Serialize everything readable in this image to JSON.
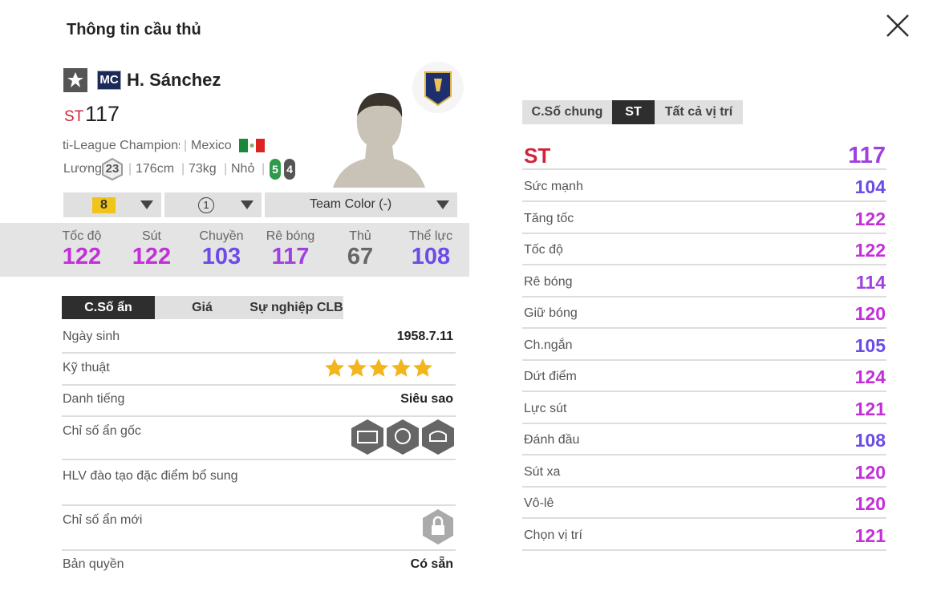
{
  "header": {
    "title": "Thông tin cầu thủ"
  },
  "player": {
    "name": "H. Sánchez",
    "card": "MC",
    "position": "ST",
    "overall": 117,
    "club": "ti-League Champions",
    "country": "Mexico",
    "salary_label": "Lương",
    "salary": 23,
    "height": "176cm",
    "weight": "73kg",
    "body": "Nhỏ",
    "weak_foot": [
      5,
      4
    ]
  },
  "selectors": [
    8,
    1,
    "Team Color (-)"
  ],
  "summary": [
    {
      "label": "Tốc độ",
      "value": 122,
      "color": "#c230d8"
    },
    {
      "label": "Sút",
      "value": 122,
      "color": "#c230d8"
    },
    {
      "label": "Chuyền",
      "value": 103,
      "color": "#6b4ce6"
    },
    {
      "label": "Rê bóng",
      "value": 117,
      "color": "#a040e0"
    },
    {
      "label": "Thủ",
      "value": 67,
      "color": "#666666"
    },
    {
      "label": "Thể lực",
      "value": 108,
      "color": "#6b4ce6"
    }
  ],
  "tabs": [
    "C.Số ẩn",
    "Giá",
    "Sự nghiệp CLB"
  ],
  "info": [
    {
      "label": "Ngày sinh",
      "value": "1958.7.11"
    },
    {
      "label": "Kỹ thuật",
      "stars": 5
    },
    {
      "label": "Danh tiếng",
      "value": "Siêu sao"
    },
    {
      "label": "Chỉ số ẩn gốc"
    },
    {
      "label": "HLV đào tạo đặc điểm bổ sung"
    },
    {
      "label": "Chỉ số ẩn mới"
    },
    {
      "label": "Bản quyền",
      "value": "Có sẵn"
    }
  ],
  "position_tabs": [
    "C.Số chung",
    "ST",
    "Tất cả vị trí"
  ],
  "position_rating": {
    "label": "ST",
    "value": 117,
    "color": "#a040e0"
  },
  "stats": [
    {
      "label": "Sức mạnh",
      "value": 104,
      "color": "#6b4ce6"
    },
    {
      "label": "Tăng tốc",
      "value": 122,
      "color": "#c230d8"
    },
    {
      "label": "Tốc độ",
      "value": 122,
      "color": "#c230d8"
    },
    {
      "label": "Rê bóng",
      "value": 114,
      "color": "#a040e0"
    },
    {
      "label": "Giữ bóng",
      "value": 120,
      "color": "#c230d8"
    },
    {
      "label": "Ch.ngắn",
      "value": 105,
      "color": "#6b4ce6"
    },
    {
      "label": "Dứt điểm",
      "value": 124,
      "color": "#c230d8"
    },
    {
      "label": "Lực sút",
      "value": 121,
      "color": "#c230d8"
    },
    {
      "label": "Đánh đầu",
      "value": 108,
      "color": "#6b4ce6"
    },
    {
      "label": "Sút xa",
      "value": 120,
      "color": "#c230d8"
    },
    {
      "label": "Vô-lê",
      "value": 120,
      "color": "#c230d8"
    },
    {
      "label": "Chọn vị trí",
      "value": 121,
      "color": "#c230d8"
    }
  ]
}
